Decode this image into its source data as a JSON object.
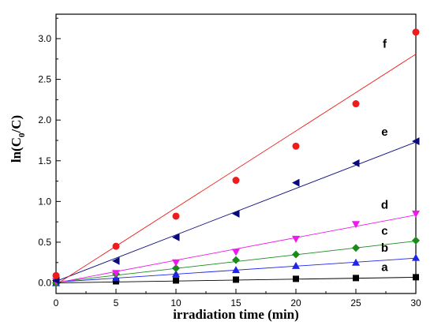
{
  "chart_data": {
    "type": "scatter",
    "title": "",
    "xlabel": "irradiation time (min)",
    "ylabel": "ln(C",
    "ylabel_sub": "0",
    "ylabel_tail": "/C)",
    "xlim": [
      0,
      30
    ],
    "ylim": [
      -0.13,
      3.3
    ],
    "x_ticks": [
      0,
      5,
      10,
      15,
      20,
      25,
      30
    ],
    "x_tick_labels": [
      "0",
      "5",
      "10",
      "15",
      "20",
      "25",
      "30"
    ],
    "y_ticks": [
      0.0,
      0.5,
      1.0,
      1.5,
      2.0,
      2.5,
      3.0
    ],
    "y_tick_labels": [
      "0.0",
      "0.5",
      "1.0",
      "1.5",
      "2.0",
      "2.5",
      "3.0"
    ],
    "x": [
      0,
      5,
      10,
      15,
      20,
      25,
      30
    ],
    "series": [
      {
        "name": "a",
        "marker": "square",
        "color": "#000000",
        "fit_color": "#000000",
        "values": [
          0.0,
          0.02,
          0.03,
          0.04,
          0.05,
          0.06,
          0.07
        ],
        "fit": [
          0.0,
          0.0023
        ]
      },
      {
        "name": "b",
        "marker": "triangle-up",
        "color": "#1e24e8",
        "fit_color": "#1e24e8",
        "values": [
          0.0,
          0.06,
          0.11,
          0.16,
          0.21,
          0.25,
          0.31
        ],
        "fit": [
          0.01,
          0.0098
        ]
      },
      {
        "name": "c",
        "marker": "diamond",
        "color": "#1a8a1a",
        "fit_color": "#1a8a1a",
        "values": [
          0.0,
          0.11,
          0.18,
          0.28,
          0.35,
          0.43,
          0.52
        ],
        "fit": [
          0.01,
          0.0168
        ]
      },
      {
        "name": "d",
        "marker": "triangle-down",
        "color": "#ee18ee",
        "fit_color": "#ee18ee",
        "values": [
          0.02,
          0.12,
          0.25,
          0.38,
          0.54,
          0.72,
          0.85
        ],
        "fit": [
          0.0,
          0.0278
        ]
      },
      {
        "name": "e",
        "marker": "triangle-left",
        "color": "#0a0a7a",
        "fit_color": "#0a0a7a",
        "values": [
          0.03,
          0.27,
          0.56,
          0.85,
          1.23,
          1.47,
          1.74
        ],
        "fit": [
          0.02,
          0.057
        ]
      },
      {
        "name": "f",
        "marker": "circle",
        "color": "#ee1c1c",
        "fit_color": "#ee1c1c",
        "values": [
          0.09,
          0.45,
          0.82,
          1.26,
          1.68,
          2.2,
          3.08
        ],
        "fit": [
          -0.02,
          0.0943
        ]
      }
    ],
    "grid": false,
    "legend": "labels at right end of each fit line"
  }
}
